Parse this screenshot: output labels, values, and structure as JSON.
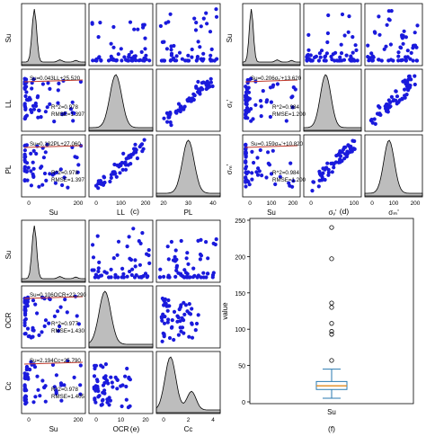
{
  "chart_data": [
    {
      "id": "c",
      "type": "scatter",
      "panel_label": "(c)",
      "variables": [
        "Su",
        "LL",
        "PL"
      ],
      "ticks": {
        "Su": [
          "0",
          "200"
        ],
        "LL": [
          "0",
          "100",
          "200"
        ],
        "PL": [
          "20",
          "30",
          "40"
        ]
      },
      "fits": {
        "1-0": [
          "Su=0.043LL+25.520",
          "R^2=0.978",
          "RMSE=1.397"
        ],
        "2-0": [
          "Su=0.182PL+27.060",
          "R^2=0.978",
          "RMSE=1.397"
        ]
      }
    },
    {
      "id": "d",
      "type": "scatter",
      "panel_label": "(d)",
      "variables": [
        "Su",
        "σᵥ'",
        "σₘ'"
      ],
      "ticks": {
        "Su": [
          "0",
          "100",
          "200"
        ],
        "σᵥ'": [
          "0",
          "100"
        ],
        "σₘ'": [
          "0",
          "100",
          "200"
        ]
      },
      "fits": {
        "1-0": [
          "Su=0.206σᵥ'+13.620",
          "R^2=0.984",
          "RMSE=1.200"
        ],
        "2-0": [
          "Su=0.159σₘ'+10.820",
          "R^2=0.984",
          "RMSE=1.200"
        ]
      }
    },
    {
      "id": "e",
      "type": "scatter",
      "panel_label": "(e)",
      "variables": [
        "Su",
        "OCR",
        "Cc"
      ],
      "ticks": {
        "Su": [
          "0",
          "200"
        ],
        "OCR": [
          "0",
          "10",
          "20"
        ],
        "Cc": [
          "0",
          "2",
          "4"
        ]
      },
      "fits": {
        "1-0": [
          "Su=0.106OCR+22.290",
          "R^2=0.977",
          "RMSE=1.430"
        ],
        "2-0": [
          "Su=2.194Cc+25.790",
          "R^2=0.978",
          "RMSE=1.405"
        ]
      }
    },
    {
      "id": "f",
      "type": "box",
      "panel_label": "(f)",
      "xlabel": "Su",
      "ylabel": "value",
      "ylim": [
        0,
        250
      ],
      "yticks": [
        0,
        50,
        100,
        150,
        200,
        250
      ],
      "box": {
        "whisker_low": 5,
        "q1": 17,
        "median": 22,
        "q3": 28,
        "whisker_high": 45
      },
      "outliers": [
        57,
        93,
        97,
        108,
        130,
        136,
        197,
        240
      ]
    }
  ]
}
